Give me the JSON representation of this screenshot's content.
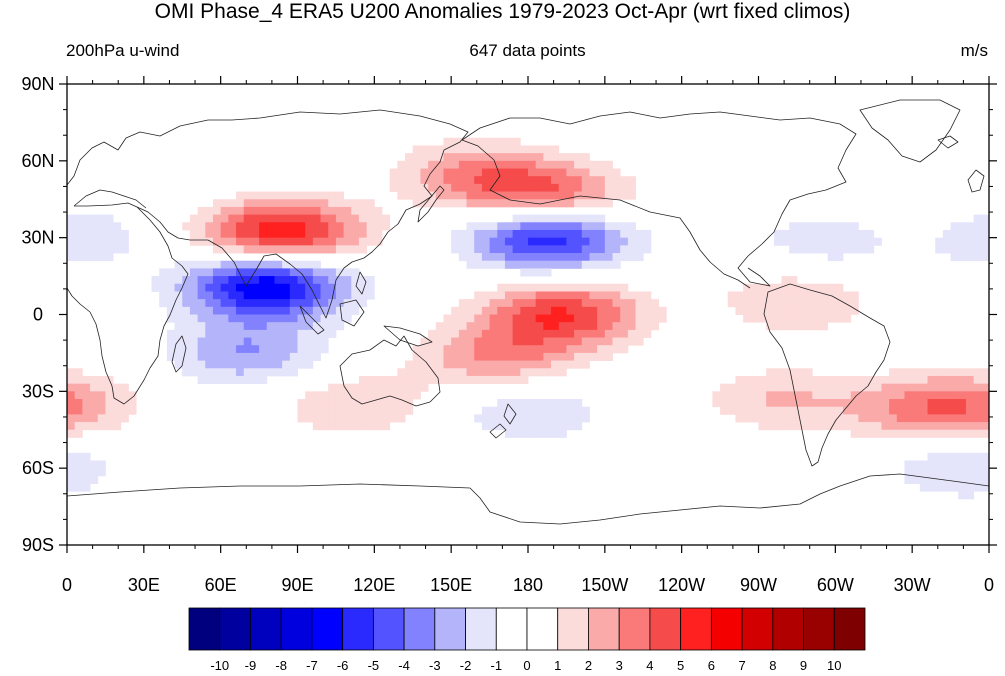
{
  "title": "OMI Phase_4 ERA5 U200 Anomalies 1979-2023 Oct-Apr (wrt fixed climos)",
  "left_string": "200hPa u-wind",
  "center_string": "647 data points",
  "right_string": "m/s",
  "chart_data": {
    "type": "heatmap",
    "projection": "cylindrical-equidistant",
    "lon_range": [
      0,
      360
    ],
    "lat_range": [
      -90,
      90
    ],
    "x_ticks": [
      {
        "lon": 0,
        "label": "0"
      },
      {
        "lon": 30,
        "label": "30E"
      },
      {
        "lon": 60,
        "label": "60E"
      },
      {
        "lon": 90,
        "label": "90E"
      },
      {
        "lon": 120,
        "label": "120E"
      },
      {
        "lon": 150,
        "label": "150E"
      },
      {
        "lon": 180,
        "label": "180"
      },
      {
        "lon": 210,
        "label": "150W"
      },
      {
        "lon": 240,
        "label": "120W"
      },
      {
        "lon": 270,
        "label": "90W"
      },
      {
        "lon": 300,
        "label": "60W"
      },
      {
        "lon": 330,
        "label": "30W"
      },
      {
        "lon": 360,
        "label": "0"
      }
    ],
    "y_ticks": [
      {
        "lat": 90,
        "label": "90N"
      },
      {
        "lat": 60,
        "label": "60N"
      },
      {
        "lat": 30,
        "label": "30N"
      },
      {
        "lat": 0,
        "label": "0"
      },
      {
        "lat": -30,
        "label": "30S"
      },
      {
        "lat": -60,
        "label": "60S"
      },
      {
        "lat": -90,
        "label": "90S"
      }
    ],
    "anomaly_centers": [
      {
        "lon": 78,
        "lat": 11,
        "value": -7
      },
      {
        "lon": 84,
        "lat": 32,
        "value": 6
      },
      {
        "lon": 188,
        "lat": 30,
        "value": -6
      },
      {
        "lon": 193,
        "lat": 0,
        "value": 5
      },
      {
        "lon": 188,
        "lat": 46,
        "value": 4
      },
      {
        "lon": 160,
        "lat": 55,
        "value": 3
      },
      {
        "lon": 168,
        "lat": -17,
        "value": 3
      },
      {
        "lon": 70,
        "lat": -15,
        "value": -3
      },
      {
        "lon": 335,
        "lat": -37,
        "value": 3
      },
      {
        "lon": 278,
        "lat": -33,
        "value": 2
      },
      {
        "lon": 285,
        "lat": 5,
        "value": 2
      },
      {
        "lon": 112,
        "lat": -35,
        "value": 2
      },
      {
        "lon": 180,
        "lat": -38,
        "value": -2
      },
      {
        "lon": 35,
        "lat": 58,
        "value": -1
      },
      {
        "lon": 360,
        "lat": 30,
        "value": -2
      },
      {
        "lon": 300,
        "lat": 30,
        "value": -2
      },
      {
        "lon": 350,
        "lat": -60,
        "value": -2
      },
      {
        "lon": 180,
        "lat": -70,
        "value": -1
      },
      {
        "lon": 160,
        "lat": -62,
        "value": 1
      },
      {
        "lon": 220,
        "lat": 83,
        "value": -1
      },
      {
        "lon": 0,
        "lat": -35,
        "value": 2
      },
      {
        "lon": 280,
        "lat": 55,
        "value": 1
      },
      {
        "lon": 325,
        "lat": 35,
        "value": 1
      }
    ],
    "colorbar": {
      "labels": [
        "-10",
        "-9",
        "-8",
        "-7",
        "-6",
        "-5",
        "-4",
        "-3",
        "-2",
        "-1",
        "0",
        "1",
        "2",
        "3",
        "4",
        "5",
        "6",
        "7",
        "8",
        "9",
        "10"
      ],
      "colors": [
        "#00007f",
        "#00009f",
        "#0000bf",
        "#0000df",
        "#0000ff",
        "#2a2aff",
        "#5353ff",
        "#8282ff",
        "#b4b4fa",
        "#e4e4fb",
        "#ffffff",
        "#ffffff",
        "#fcdbdb",
        "#fbaaaa",
        "#fa7a7a",
        "#f54b4b",
        "#ff2020",
        "#f50000",
        "#d20000",
        "#b00000",
        "#990000",
        "#7f0000"
      ]
    }
  }
}
